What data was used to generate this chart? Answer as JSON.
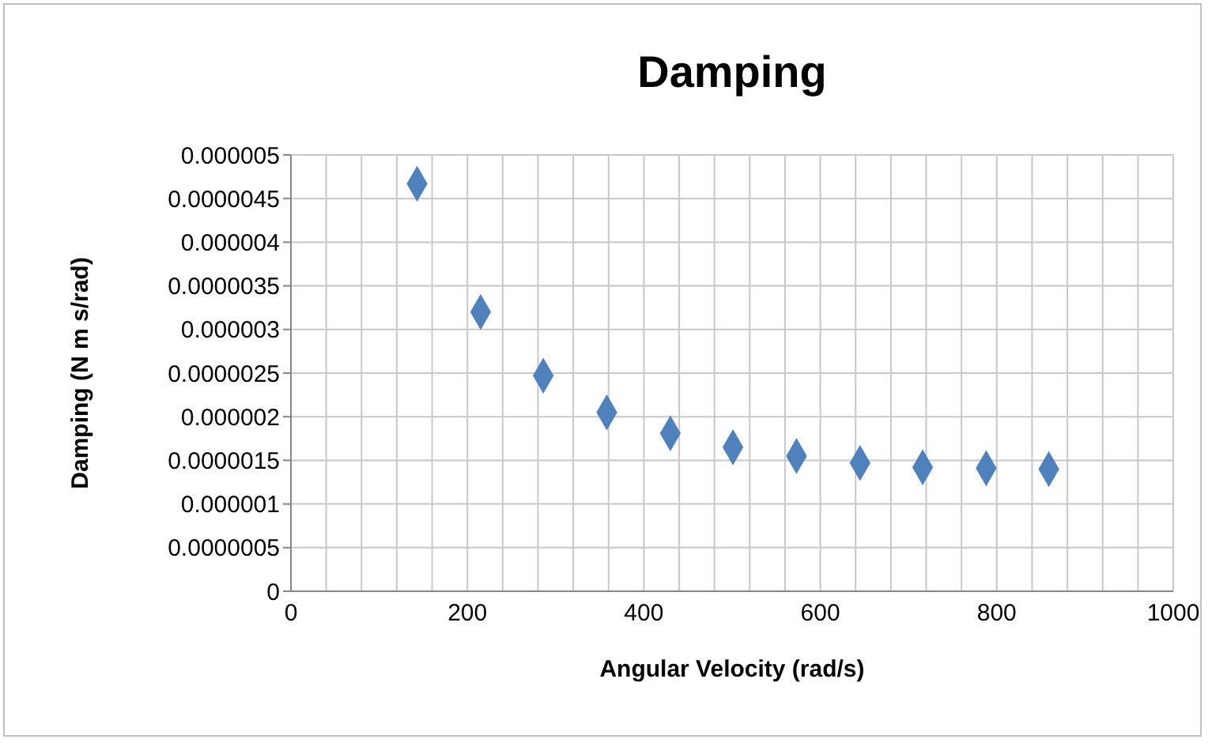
{
  "chart_data": {
    "type": "scatter",
    "title": "Damping",
    "xlabel": "Angular Velocity (rad/s)",
    "ylabel": "Damping (N m s/rad)",
    "x": [
      143,
      215,
      286,
      358,
      430,
      501,
      573,
      645,
      716,
      788,
      859
    ],
    "series": [
      {
        "color": "#4f81bd",
        "values": [
          4.67e-06,
          3.2e-06,
          2.47e-06,
          2.05e-06,
          1.81e-06,
          1.65e-06,
          1.55e-06,
          1.47e-06,
          1.42e-06,
          1.41e-06,
          1.4e-06
        ]
      }
    ],
    "marker": "diamond",
    "xlim": [
      0,
      1000
    ],
    "xticks": [
      0,
      {
        "value": 40,
        "label": null
      },
      {
        "value": 80,
        "label": null
      },
      {
        "value": 120,
        "label": null
      },
      {
        "value": 160,
        "label": null
      },
      200,
      {
        "value": 240,
        "label": null
      },
      {
        "value": 280,
        "label": null
      },
      {
        "value": 320,
        "label": null
      },
      {
        "value": 360,
        "label": null
      },
      400,
      {
        "value": 440,
        "label": null
      },
      {
        "value": 480,
        "label": null
      },
      {
        "value": 520,
        "label": null
      },
      {
        "value": 560,
        "label": null
      },
      600,
      {
        "value": 640,
        "label": null
      },
      {
        "value": 680,
        "label": null
      },
      {
        "value": 720,
        "label": null
      },
      {
        "value": 760,
        "label": null
      },
      800,
      {
        "value": 840,
        "label": null
      },
      {
        "value": 880,
        "label": null
      },
      {
        "value": 920,
        "label": null
      },
      {
        "value": 960,
        "label": null
      },
      1000
    ],
    "ylim": [
      0,
      5e-06
    ],
    "yticks": [
      0,
      {
        "value": 5e-07,
        "label": "0.0000005"
      },
      {
        "value": 1e-06,
        "label": "0.000001"
      },
      {
        "value": 1.5e-06,
        "label": "0.0000015"
      },
      {
        "value": 2e-06,
        "label": "0.000002"
      },
      {
        "value": 2.5e-06,
        "label": "0.0000025"
      },
      {
        "value": 3e-06,
        "label": "0.000003"
      },
      {
        "value": 3.5e-06,
        "label": "0.0000035"
      },
      {
        "value": 4e-06,
        "label": "0.000004"
      },
      {
        "value": 4.5e-06,
        "label": "0.0000045"
      },
      {
        "value": 5e-06,
        "label": "0.000005"
      }
    ],
    "grid": true,
    "legend": false
  }
}
